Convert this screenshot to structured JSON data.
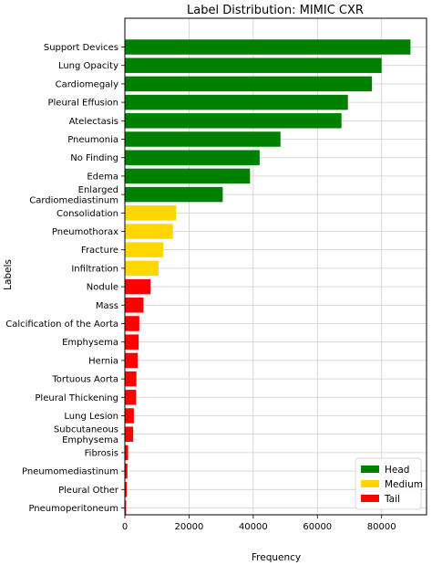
{
  "chart_data": {
    "type": "bar",
    "orientation": "horizontal",
    "title": "Label Distribution: MIMIC CXR",
    "xlabel": "Frequency",
    "ylabel": "Labels",
    "xlim": [
      0,
      94000
    ],
    "xticks": [
      0,
      20000,
      40000,
      60000,
      80000
    ],
    "grid": true,
    "legend_position": "bottom-right",
    "legend": [
      {
        "name": "Head",
        "color": "#008000"
      },
      {
        "name": "Medium",
        "color": "#FFD700"
      },
      {
        "name": "Tail",
        "color": "#FF0000"
      }
    ],
    "bars": [
      {
        "label": "Support Devices",
        "value": 89000,
        "group": "Head"
      },
      {
        "label": "Lung Opacity",
        "value": 80000,
        "group": "Head"
      },
      {
        "label": "Cardiomegaly",
        "value": 77000,
        "group": "Head"
      },
      {
        "label": "Pleural Effusion",
        "value": 69500,
        "group": "Head"
      },
      {
        "label": "Atelectasis",
        "value": 67500,
        "group": "Head"
      },
      {
        "label": "Pneumonia",
        "value": 48500,
        "group": "Head"
      },
      {
        "label": "No Finding",
        "value": 42000,
        "group": "Head"
      },
      {
        "label": "Edema",
        "value": 39000,
        "group": "Head"
      },
      {
        "label": "Enlarged\nCardiomediastinum",
        "value": 30500,
        "group": "Head"
      },
      {
        "label": "Consolidation",
        "value": 16000,
        "group": "Medium"
      },
      {
        "label": "Pneumothorax",
        "value": 15000,
        "group": "Medium"
      },
      {
        "label": "Fracture",
        "value": 12000,
        "group": "Medium"
      },
      {
        "label": "Infiltration",
        "value": 10500,
        "group": "Medium"
      },
      {
        "label": "Nodule",
        "value": 8000,
        "group": "Tail"
      },
      {
        "label": "Mass",
        "value": 5800,
        "group": "Tail"
      },
      {
        "label": "Calcification of the Aorta",
        "value": 4500,
        "group": "Tail"
      },
      {
        "label": "Emphysema",
        "value": 4300,
        "group": "Tail"
      },
      {
        "label": "Hernia",
        "value": 4000,
        "group": "Tail"
      },
      {
        "label": "Tortuous Aorta",
        "value": 3600,
        "group": "Tail"
      },
      {
        "label": "Pleural Thickening",
        "value": 3500,
        "group": "Tail"
      },
      {
        "label": "Lung Lesion",
        "value": 2800,
        "group": "Tail"
      },
      {
        "label": "Subcutaneous\nEmphysema",
        "value": 2600,
        "group": "Tail"
      },
      {
        "label": "Fibrosis",
        "value": 1000,
        "group": "Tail"
      },
      {
        "label": "Pneumomediastinum",
        "value": 800,
        "group": "Tail"
      },
      {
        "label": "Pleural Other",
        "value": 600,
        "group": "Tail"
      },
      {
        "label": "Pneumoperitoneum",
        "value": 400,
        "group": "Tail"
      }
    ]
  }
}
